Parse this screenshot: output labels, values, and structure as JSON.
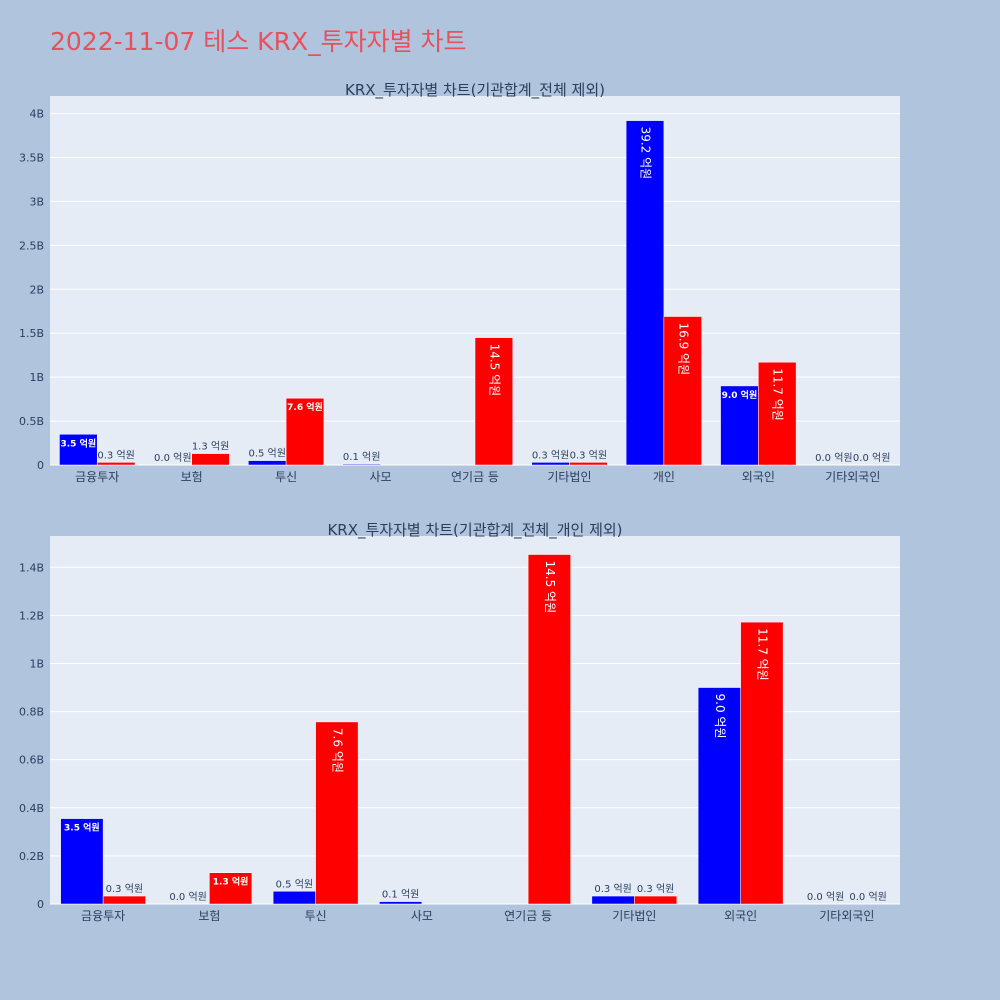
{
  "page": {
    "title": "2022-11-07 테스 KRX_투자자별 차트"
  },
  "chart_data": [
    {
      "type": "bar",
      "title": "KRX_투자자별 차트(기관합계_전체 제외)",
      "categories": [
        "금융투자",
        "보험",
        "투신",
        "사모",
        "연기금 등",
        "기타법인",
        "개인",
        "외국인",
        "기타외국인"
      ],
      "series": [
        {
          "color": "#0000ff",
          "values": [
            0.35,
            0.0,
            0.05,
            0.01,
            0.0,
            0.03,
            3.92,
            0.9,
            0.0
          ],
          "labels": [
            "3.5 억원",
            "0.0 억원",
            "0.5 억원",
            "0.1 억원",
            "",
            "0.3 억원",
            "39.2 억원",
            "9.0 억원",
            "0.0 억원"
          ]
        },
        {
          "color": "#ff0000",
          "values": [
            0.03,
            0.13,
            0.76,
            0.0,
            1.45,
            0.03,
            1.69,
            1.17,
            0.0
          ],
          "labels": [
            "0.3 억원",
            "1.3 억원",
            "7.6 억원",
            "",
            "14.5 억원",
            "0.3 억원",
            "16.9 억원",
            "11.7 억원",
            "0.0 억원"
          ]
        }
      ],
      "ylim": [
        0,
        4.2
      ],
      "yticks": [
        0,
        0.5,
        1,
        1.5,
        2,
        2.5,
        3,
        3.5,
        4
      ],
      "ytick_labels": [
        "0",
        "0.5B",
        "1B",
        "1.5B",
        "2B",
        "2.5B",
        "3B",
        "3.5B",
        "4B"
      ],
      "grid": true
    },
    {
      "type": "bar",
      "title": "KRX_투자자별 차트(기관합계_전체_개인 제외)",
      "categories": [
        "금융투자",
        "보험",
        "투신",
        "사모",
        "연기금 등",
        "기타법인",
        "외국인",
        "기타외국인"
      ],
      "series": [
        {
          "color": "#0000ff",
          "values": [
            0.355,
            0.0,
            0.053,
            0.01,
            0.0,
            0.033,
            0.9,
            0.0
          ],
          "labels": [
            "3.5 억원",
            "0.0 억원",
            "0.5 억원",
            "0.1 억원",
            "",
            "0.3 억원",
            "9.0 억원",
            "0.0 억원"
          ]
        },
        {
          "color": "#ff0000",
          "values": [
            0.033,
            0.13,
            0.757,
            0.0,
            1.453,
            0.033,
            1.172,
            0.0
          ],
          "labels": [
            "0.3 억원",
            "1.3 억원",
            "7.6 억원",
            "",
            "14.5 억원",
            "0.3 억원",
            "11.7 억원",
            "0.0 억원"
          ]
        }
      ],
      "ylim": [
        0,
        1.53
      ],
      "yticks": [
        0,
        0.2,
        0.4,
        0.6,
        0.8,
        1.0,
        1.2,
        1.4
      ],
      "ytick_labels": [
        "0",
        "0.2B",
        "0.4B",
        "0.6B",
        "0.8B",
        "1B",
        "1.2B",
        "1.4B"
      ],
      "grid": true
    }
  ]
}
